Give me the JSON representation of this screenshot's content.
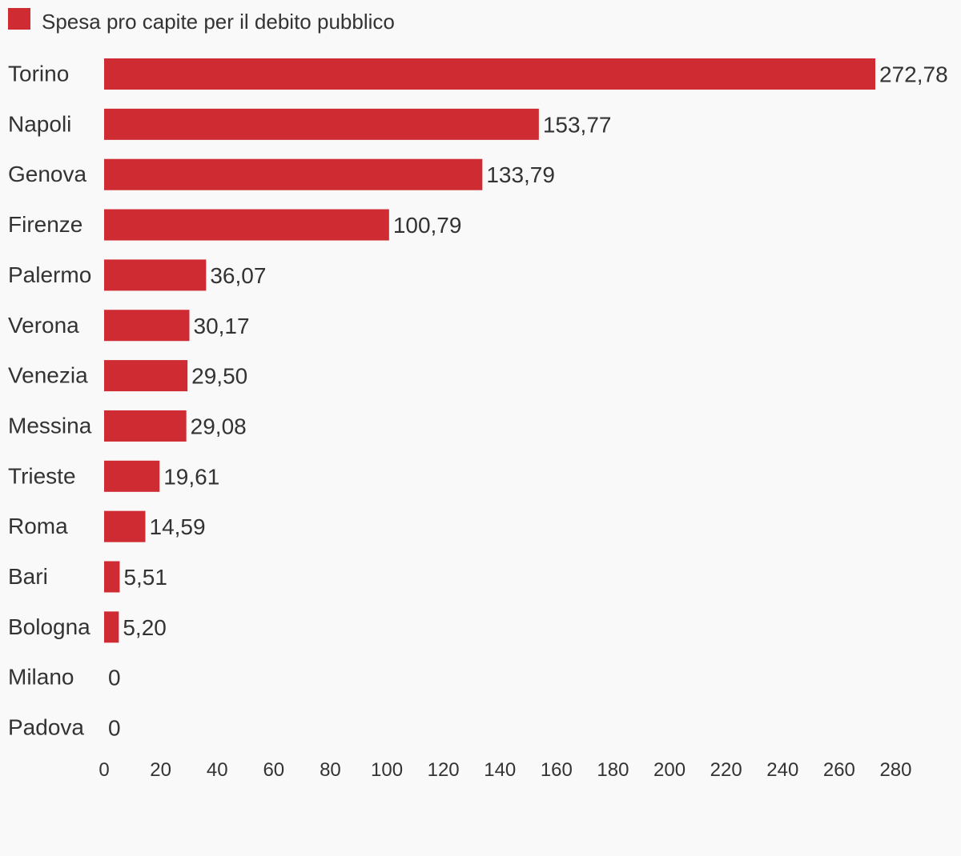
{
  "chart_data": {
    "type": "bar",
    "orientation": "horizontal",
    "legend_position": "top-left",
    "grid": false,
    "bar_color": "#cf2b32",
    "background": "#f9f9f9",
    "text_color": "#333333",
    "series": [
      {
        "name": "Spesa pro capite per il debito pubblico",
        "values": [
          272.78,
          153.77,
          133.79,
          100.79,
          36.07,
          30.17,
          29.5,
          29.08,
          19.61,
          14.59,
          5.51,
          5.2,
          0,
          0
        ],
        "labels": [
          "272,78",
          "153,77",
          "133,79",
          "100,79",
          "36,07",
          "30,17",
          "29,50",
          "29,08",
          "19,61",
          "14,59",
          "5,51",
          "5,20",
          "0",
          "0"
        ]
      }
    ],
    "categories": [
      "Torino",
      "Napoli",
      "Genova",
      "Firenze",
      "Palermo",
      "Verona",
      "Venezia",
      "Messina",
      "Trieste",
      "Roma",
      "Bari",
      "Bologna",
      "Milano",
      "Padova"
    ],
    "xlim": [
      0,
      280
    ],
    "xticks": [
      "0",
      "20",
      "40",
      "60",
      "80",
      "100",
      "120",
      "140",
      "160",
      "180",
      "200",
      "220",
      "240",
      "260",
      "280"
    ]
  }
}
